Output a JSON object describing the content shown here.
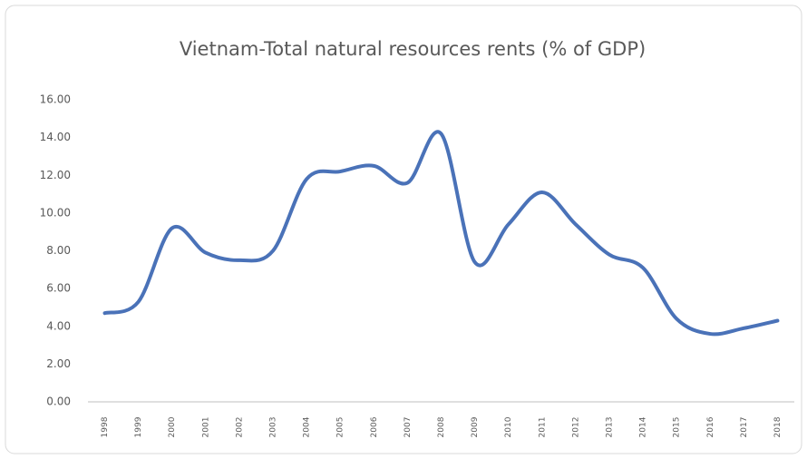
{
  "chart_data": {
    "type": "line",
    "title": "Vietnam-Total natural resources rents (% of GDP)",
    "categories": [
      "1998",
      "1999",
      "2000",
      "2001",
      "2002",
      "2003",
      "2004",
      "2005",
      "2006",
      "2007",
      "2008",
      "2009",
      "2010",
      "2011",
      "2012",
      "2013",
      "2014",
      "2015",
      "2016",
      "2017",
      "2018"
    ],
    "series": [
      {
        "name": "Total natural resources rents",
        "color": "#4a72b8",
        "values": [
          4.7,
          5.3,
          9.2,
          7.9,
          7.5,
          8.0,
          11.8,
          12.2,
          12.5,
          11.6,
          14.2,
          7.4,
          9.4,
          11.1,
          9.4,
          7.8,
          7.1,
          4.4,
          3.6,
          3.9,
          4.3
        ]
      }
    ],
    "ylim": [
      0,
      16
    ],
    "yticks": [
      {
        "value": 0,
        "label": "0.00"
      },
      {
        "value": 2,
        "label": "2.00"
      },
      {
        "value": 4,
        "label": "4.00"
      },
      {
        "value": 6,
        "label": "6.00"
      },
      {
        "value": 8,
        "label": "8.00"
      },
      {
        "value": 10,
        "label": "10.00"
      },
      {
        "value": 12,
        "label": "12.00"
      },
      {
        "value": 14,
        "label": "14.00"
      },
      {
        "value": 16,
        "label": "16.00"
      }
    ],
    "grid": false
  }
}
